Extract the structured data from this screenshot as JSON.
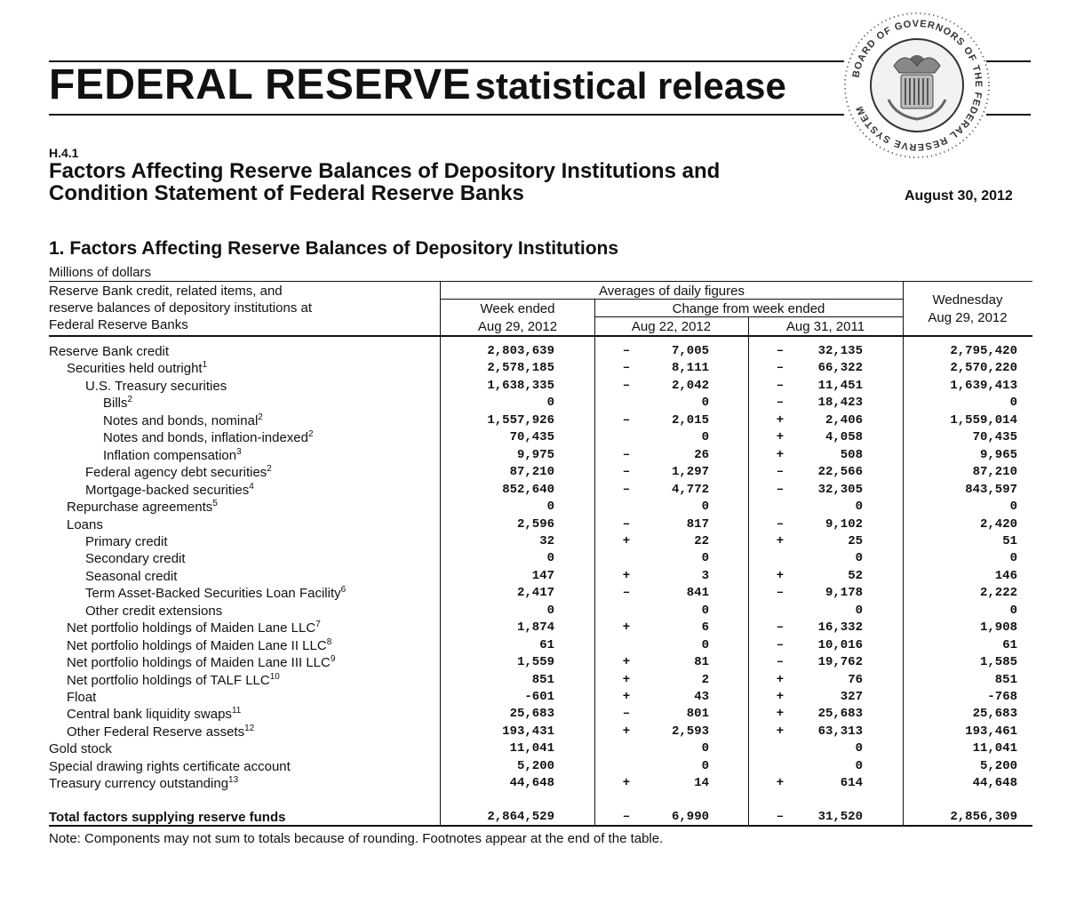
{
  "masthead": {
    "title_bold": "FEDERAL RESERVE",
    "title_rest": "statistical release",
    "seal_text": "BOARD OF GOVERNORS OF THE FEDERAL RESERVE SYSTEM"
  },
  "release": {
    "code": "H.4.1",
    "title_line1": "Factors Affecting Reserve Balances of Depository Institutions and",
    "title_line2": "Condition Statement of Federal Reserve Banks",
    "date": "August 30, 2012"
  },
  "section": {
    "heading": "1. Factors Affecting Reserve Balances of Depository Institutions",
    "units": "Millions of dollars"
  },
  "table": {
    "header": {
      "row_label_line1": "Reserve Bank credit, related items, and",
      "row_label_line2": "reserve balances of depository institutions at",
      "row_label_line3": "Federal Reserve Banks",
      "averages": "Averages of daily figures",
      "week_ended": "Week ended",
      "week_ended_date": "Aug 29, 2012",
      "change_from": "Change from week ended",
      "change_date1": "Aug 22, 2012",
      "change_date2": "Aug 31, 2011",
      "wednesday": "Wednesday",
      "wednesday_date": "Aug 29, 2012"
    },
    "rows": [
      {
        "label": "Reserve Bank credit",
        "sup": "",
        "week": "2,803,639",
        "sign1": "–",
        "chg1": "7,005",
        "sign2": "–",
        "chg2": "32,135",
        "wed": "2,795,420"
      },
      {
        "label": "Securities held outright",
        "sup": "1",
        "week": "2,578,185",
        "sign1": "–",
        "chg1": "8,111",
        "sign2": "–",
        "chg2": "66,322",
        "wed": "2,570,220"
      },
      {
        "label": "U.S. Treasury securities",
        "sup": "",
        "week": "1,638,335",
        "sign1": "–",
        "chg1": "2,042",
        "sign2": "–",
        "chg2": "11,451",
        "wed": "1,639,413"
      },
      {
        "label": "Bills",
        "sup": "2",
        "week": "0",
        "sign1": "",
        "chg1": "0",
        "sign2": "–",
        "chg2": "18,423",
        "wed": "0"
      },
      {
        "label": "Notes and bonds, nominal",
        "sup": "2",
        "week": "1,557,926",
        "sign1": "–",
        "chg1": "2,015",
        "sign2": "+",
        "chg2": "2,406",
        "wed": "1,559,014"
      },
      {
        "label": "Notes and bonds, inflation-indexed",
        "sup": "2",
        "week": "70,435",
        "sign1": "",
        "chg1": "0",
        "sign2": "+",
        "chg2": "4,058",
        "wed": "70,435"
      },
      {
        "label": "Inflation compensation",
        "sup": "3",
        "week": "9,975",
        "sign1": "–",
        "chg1": "26",
        "sign2": "+",
        "chg2": "508",
        "wed": "9,965"
      },
      {
        "label": "Federal agency debt securities",
        "sup": "2",
        "week": "87,210",
        "sign1": "–",
        "chg1": "1,297",
        "sign2": "–",
        "chg2": "22,566",
        "wed": "87,210"
      },
      {
        "label": "Mortgage-backed securities",
        "sup": "4",
        "week": "852,640",
        "sign1": "–",
        "chg1": "4,772",
        "sign2": "–",
        "chg2": "32,305",
        "wed": "843,597"
      },
      {
        "label": "Repurchase agreements",
        "sup": "5",
        "week": "0",
        "sign1": "",
        "chg1": "0",
        "sign2": "",
        "chg2": "0",
        "wed": "0"
      },
      {
        "label": "Loans",
        "sup": "",
        "week": "2,596",
        "sign1": "–",
        "chg1": "817",
        "sign2": "–",
        "chg2": "9,102",
        "wed": "2,420"
      },
      {
        "label": "Primary credit",
        "sup": "",
        "week": "32",
        "sign1": "+",
        "chg1": "22",
        "sign2": "+",
        "chg2": "25",
        "wed": "51"
      },
      {
        "label": "Secondary credit",
        "sup": "",
        "week": "0",
        "sign1": "",
        "chg1": "0",
        "sign2": "",
        "chg2": "0",
        "wed": "0"
      },
      {
        "label": "Seasonal credit",
        "sup": "",
        "week": "147",
        "sign1": "+",
        "chg1": "3",
        "sign2": "+",
        "chg2": "52",
        "wed": "146"
      },
      {
        "label": "Term Asset-Backed Securities Loan Facility",
        "sup": "6",
        "week": "2,417",
        "sign1": "–",
        "chg1": "841",
        "sign2": "–",
        "chg2": "9,178",
        "wed": "2,222"
      },
      {
        "label": "Other credit extensions",
        "sup": "",
        "week": "0",
        "sign1": "",
        "chg1": "0",
        "sign2": "",
        "chg2": "0",
        "wed": "0"
      },
      {
        "label": "Net portfolio holdings of Maiden Lane LLC",
        "sup": "7",
        "week": "1,874",
        "sign1": "+",
        "chg1": "6",
        "sign2": "–",
        "chg2": "16,332",
        "wed": "1,908"
      },
      {
        "label": "Net portfolio holdings of Maiden Lane II LLC",
        "sup": "8",
        "week": "61",
        "sign1": "",
        "chg1": "0",
        "sign2": "–",
        "chg2": "10,016",
        "wed": "61"
      },
      {
        "label": "Net portfolio holdings of Maiden Lane III LLC",
        "sup": "9",
        "week": "1,559",
        "sign1": "+",
        "chg1": "81",
        "sign2": "–",
        "chg2": "19,762",
        "wed": "1,585"
      },
      {
        "label": "Net portfolio holdings of TALF LLC",
        "sup": "10",
        "week": "851",
        "sign1": "+",
        "chg1": "2",
        "sign2": "+",
        "chg2": "76",
        "wed": "851"
      },
      {
        "label": "Float",
        "sup": "",
        "week": "-601",
        "sign1": "+",
        "chg1": "43",
        "sign2": "+",
        "chg2": "327",
        "wed": "-768"
      },
      {
        "label": "Central bank liquidity swaps",
        "sup": "11",
        "week": "25,683",
        "sign1": "–",
        "chg1": "801",
        "sign2": "+",
        "chg2": "25,683",
        "wed": "25,683"
      },
      {
        "label": "Other Federal Reserve assets",
        "sup": "12",
        "week": "193,431",
        "sign1": "+",
        "chg1": "2,593",
        "sign2": "+",
        "chg2": "63,313",
        "wed": "193,461"
      },
      {
        "label": "Gold stock",
        "sup": "",
        "week": "11,041",
        "sign1": "",
        "chg1": "0",
        "sign2": "",
        "chg2": "0",
        "wed": "11,041"
      },
      {
        "label": "Special drawing rights certificate account",
        "sup": "",
        "week": "5,200",
        "sign1": "",
        "chg1": "0",
        "sign2": "",
        "chg2": "0",
        "wed": "5,200"
      },
      {
        "label": "Treasury currency outstanding",
        "sup": "13",
        "week": "44,648",
        "sign1": "+",
        "chg1": "14",
        "sign2": "+",
        "chg2": "614",
        "wed": "44,648"
      }
    ],
    "total": {
      "label": "Total factors supplying reserve funds",
      "week": "2,864,529",
      "sign1": "–",
      "chg1": "6,990",
      "sign2": "–",
      "chg2": "31,520",
      "wed": "2,856,309"
    }
  },
  "note": "Note: Components may not sum to totals because of rounding. Footnotes appear at the end of the table."
}
